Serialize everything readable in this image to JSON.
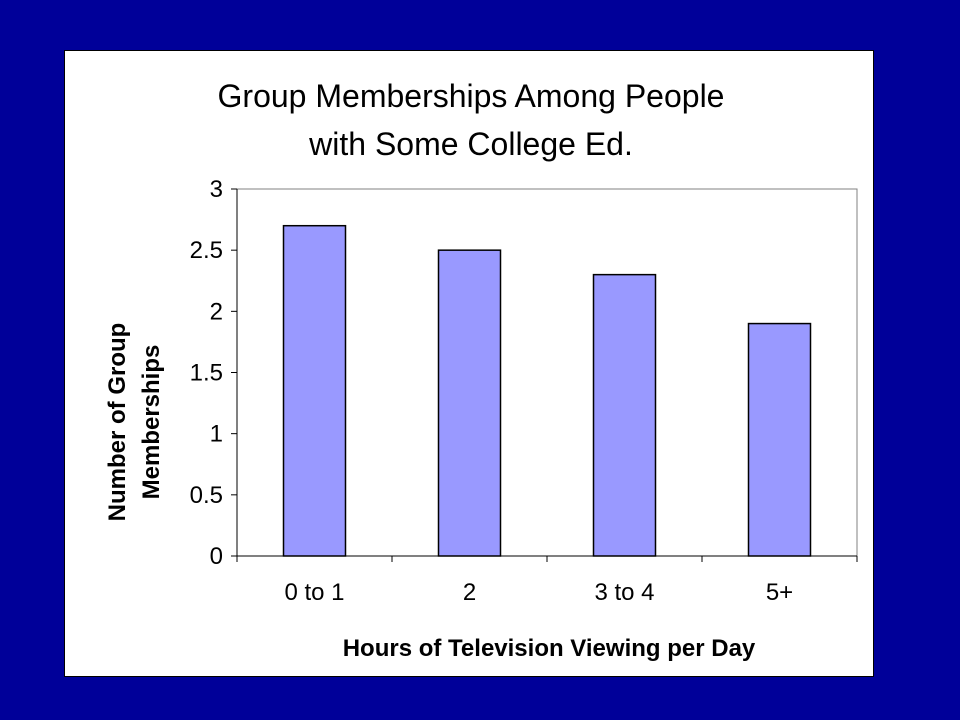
{
  "chart_data": {
    "type": "bar",
    "title_lines": [
      "Group Memberships Among People",
      "with Some College Ed."
    ],
    "categories": [
      "0 to 1",
      "2",
      "3 to 4",
      "5+"
    ],
    "values": [
      2.7,
      2.5,
      2.3,
      1.9
    ],
    "xlabel": "Hours of Television Viewing per Day",
    "ylabel_lines": [
      "Number of Group",
      "Memberships"
    ],
    "ylim": [
      0,
      3
    ],
    "yticks": [
      "0",
      "0.5",
      "1",
      "1.5",
      "2",
      "2.5",
      "3"
    ],
    "ytick_values": [
      0,
      0.5,
      1,
      1.5,
      2,
      2.5,
      3
    ],
    "grid": false,
    "legend": "none",
    "colors": {
      "background": "#000099",
      "panel": "#ffffff",
      "bar_fill": "#9999ff",
      "bar_stroke": "#000000",
      "axis": "#808080"
    }
  }
}
